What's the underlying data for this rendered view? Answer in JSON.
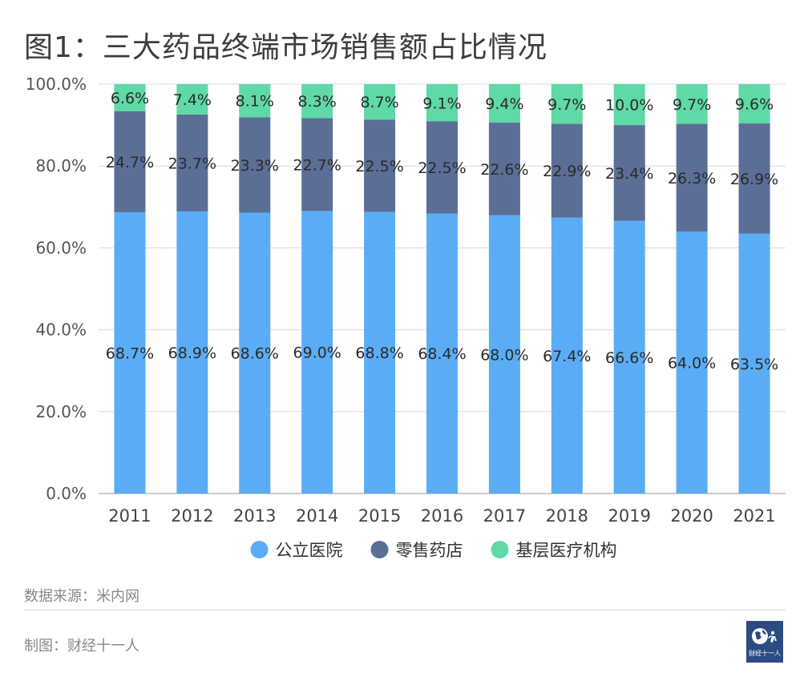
{
  "title": "图1：三大药品终端市场销售额占比情况",
  "source": "数据来源：米内网",
  "maker": "制图：财经十一人",
  "logo_text": "财经十一人",
  "chart_data": {
    "type": "bar",
    "stacked": true,
    "title": "图1：三大药品终端市场销售额占比情况",
    "categories": [
      "2011",
      "2012",
      "2013",
      "2014",
      "2015",
      "2016",
      "2017",
      "2018",
      "2019",
      "2020",
      "2021"
    ],
    "series": [
      {
        "name": "公立医院",
        "color": "#5aadf5",
        "values": [
          68.7,
          68.9,
          68.6,
          69.0,
          68.8,
          68.4,
          68.0,
          67.4,
          66.6,
          64.0,
          63.5
        ],
        "labels": [
          "68.7%",
          "68.9%",
          "68.6%",
          "69.0%",
          "68.8%",
          "68.4%",
          "68.0%",
          "67.4%",
          "66.6%",
          "64.0%",
          "63.5%"
        ]
      },
      {
        "name": "零售药店",
        "color": "#5b6e96",
        "values": [
          24.7,
          23.7,
          23.3,
          22.7,
          22.5,
          22.5,
          22.6,
          22.9,
          23.4,
          26.3,
          26.9
        ],
        "labels": [
          "24.7%",
          "23.7%",
          "23.3%",
          "22.7%",
          "22.5%",
          "22.5%",
          "22.6%",
          "22.9%",
          "23.4%",
          "26.3%",
          "26.9%"
        ]
      },
      {
        "name": "基层医疗机构",
        "color": "#5fd9a6",
        "values": [
          6.6,
          7.4,
          8.1,
          8.3,
          8.7,
          9.1,
          9.4,
          9.7,
          10.0,
          9.7,
          9.6
        ],
        "labels": [
          "6.6%",
          "7.4%",
          "8.1%",
          "8.3%",
          "8.7%",
          "9.1%",
          "9.4%",
          "9.7%",
          "10.0%",
          "9.7%",
          "9.6%"
        ]
      }
    ],
    "ylim": [
      0,
      100
    ],
    "yticks": [
      0,
      20,
      40,
      60,
      80,
      100
    ],
    "ytick_labels": [
      "0.0%",
      "20.0%",
      "40.0%",
      "60.0%",
      "80.0%",
      "100.0%"
    ],
    "xlabel": "",
    "ylabel": "",
    "grid": true,
    "legend_position": "bottom-center"
  }
}
